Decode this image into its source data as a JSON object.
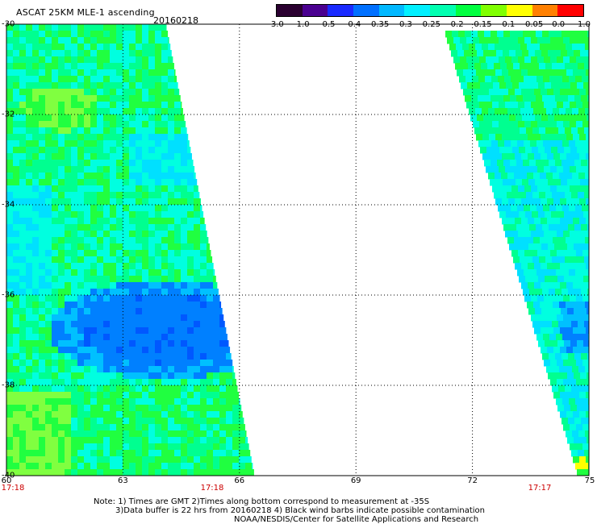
{
  "header": {
    "title": "ASCAT 25KM MLE-1 ascending",
    "date": "20160218"
  },
  "colorbar": {
    "colors": [
      "#2a0030",
      "#4a0090",
      "#1a2aff",
      "#0070ff",
      "#00b8ff",
      "#00f0ff",
      "#00ffb0",
      "#00ff40",
      "#80ff00",
      "#ffff00",
      "#ff8000",
      "#ff0000"
    ],
    "labels": [
      "-3.0",
      "-1.0",
      "-0.5",
      "-0.4",
      "-0.35",
      "-0.3",
      "-0.25",
      "-0.2",
      "-0.15",
      "-0.1",
      "-0.05",
      "0.0",
      "1.0"
    ]
  },
  "axes": {
    "lat_ticks": [
      "-30",
      "-32",
      "-34",
      "-36",
      "-38",
      "-40"
    ],
    "lon_ticks": [
      "60",
      "63",
      "66",
      "69",
      "72",
      "75"
    ],
    "time_labels": [
      "17:18",
      "17:18",
      "17:17"
    ]
  },
  "notes": {
    "line1": "Note: 1) Times are GMT 2)Times along bottom correspond to measurement at -35S",
    "line2": "3)Data buffer is 22 hrs from 20160218 4) Black wind barbs indicate possible contamination",
    "line3": "NOAA/NESDIS/Center for Satellite Applications and Research"
  }
}
